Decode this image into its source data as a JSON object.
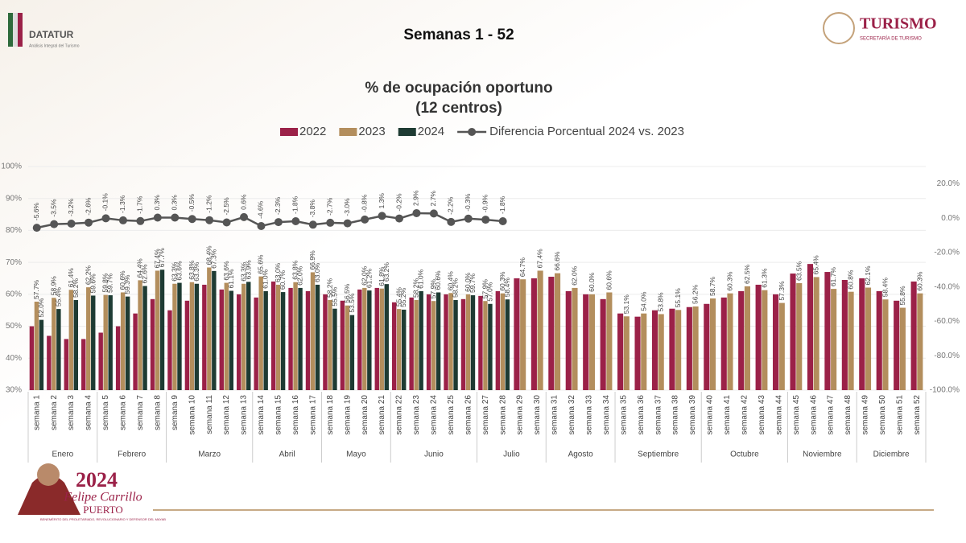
{
  "header": {
    "logo": "DATATUR",
    "logo_subtitle": "Análisis Integral del Turismo",
    "page_title": "Semanas 1 - 52",
    "ministry": "TURISMO",
    "ministry_subtitle": "SECRETARÍA DE TURISMO"
  },
  "footer": {
    "year": "2024",
    "name": "Felipe Carrillo",
    "surname": "PUERTO",
    "motto": "BENEMÉRITO DEL PROLETARIADO, REVOLUCIONARIO Y DEFENSOR DEL MAYAB"
  },
  "chart_data": {
    "type": "bar",
    "title": "% de ocupación oportuno",
    "subtitle": "(12 centros)",
    "categories": [
      "semana 1",
      "semana 2",
      "semana 3",
      "semana 4",
      "semana 5",
      "semana 6",
      "semana 7",
      "semana 8",
      "semana 9",
      "semana 10",
      "semana 11",
      "semana 12",
      "semana 13",
      "semana 14",
      "semana 15",
      "semana 16",
      "semana 17",
      "semana 18",
      "semana 19",
      "semana 20",
      "semana 21",
      "semana 22",
      "semana 23",
      "semana 24",
      "semana 25",
      "semana 26",
      "semana 27",
      "semana 28",
      "semana 29",
      "semana 30",
      "semana 31",
      "semana 32",
      "semana 33",
      "semana 34",
      "semana 35",
      "semana 36",
      "semana 37",
      "semana 38",
      "semana 39",
      "semana 40",
      "semana 41",
      "semana 42",
      "semana 43",
      "semana 44",
      "semana 45",
      "semana 46",
      "semana 47",
      "semana 48",
      "semana 49",
      "semana 50",
      "semana 51",
      "semana 52"
    ],
    "groups": [
      {
        "label": "Enero",
        "span": 4
      },
      {
        "label": "Febrero",
        "span": 4
      },
      {
        "label": "Marzo",
        "span": 5
      },
      {
        "label": "Abril",
        "span": 4
      },
      {
        "label": "Mayo",
        "span": 4
      },
      {
        "label": "Junio",
        "span": 5
      },
      {
        "label": "Julio",
        "span": 4
      },
      {
        "label": "Agosto",
        "span": 4
      },
      {
        "label": "Septiembre",
        "span": 5
      },
      {
        "label": "Octubre",
        "span": 5
      },
      {
        "label": "Noviembre",
        "span": 4
      },
      {
        "label": "Diciembre",
        "span": 4
      }
    ],
    "series": [
      {
        "name": "2022",
        "color": "#9b2148",
        "values": [
          50,
          47,
          46,
          46,
          48,
          50,
          54,
          58.5,
          55,
          58,
          63,
          61.5,
          60,
          59,
          64,
          62,
          61,
          60,
          58,
          61.5,
          62,
          57.5,
          59,
          60,
          60,
          58.5,
          59.5,
          61,
          65,
          65,
          65.5,
          61,
          60,
          58.5,
          54,
          53,
          55,
          55.5,
          56,
          57,
          59,
          61,
          63,
          60,
          66.5,
          69.5,
          67,
          64.5,
          65,
          61,
          58,
          64
        ]
      },
      {
        "name": "2023",
        "color": "#b38e5d",
        "values": [
          57.7,
          58.9,
          61.4,
          62.2,
          59.8,
          60.6,
          64.4,
          67.4,
          63.3,
          63.8,
          68.4,
          63.6,
          63.3,
          65.6,
          63.0,
          63.8,
          66.9,
          58.2,
          56.5,
          62.0,
          61.8,
          55.4,
          58.2,
          57.9,
          60.4,
          60.0,
          57.9,
          60.3,
          64.7,
          67.4,
          66.6,
          62.0,
          60.0,
          60.6,
          53.1,
          54.0,
          53.8,
          55.1,
          56.2,
          58.7,
          60.3,
          62.5,
          61.3,
          57.3,
          63.5,
          65.4,
          61.7,
          60.8,
          62.1,
          58.4,
          55.8,
          60.3
        ],
        "value_labels": [
          "57.7%",
          "58.9%",
          "61.4%",
          "62.2%",
          "59.8%",
          "60.6%",
          "64.4%",
          "67.4%",
          "63.3%",
          "63.8%",
          "68.4%",
          "63.6%",
          "63.3%",
          "65.6%",
          "63.0%",
          "63.8%",
          "66.9%",
          "58.2%",
          "56.5%",
          "62.0%",
          "61.8%",
          "55.4%",
          "58.2%",
          "57.9%",
          "60.4%",
          "60.0%",
          "57.9%",
          "60.3%",
          "64.7%",
          "67.4%",
          "66.6%",
          "62.0%",
          "60.0%",
          "60.6%",
          "53.1%",
          "54.0%",
          "53.8%",
          "55.1%",
          "56.2%",
          "58.7%",
          "60.3%",
          "62.5%",
          "61.3%",
          "57.3%",
          "63.5%",
          "65.4%",
          "61.7%",
          "60.8%",
          "62.1%",
          "58.4%",
          "55.8%",
          "60.3%"
        ]
      },
      {
        "name": "2024",
        "color": "#1e3b33",
        "values": [
          52.0,
          55.4,
          58.2,
          59.6,
          59.7,
          59.3,
          62.6,
          67.7,
          63.6,
          63.3,
          67.3,
          61.1,
          63.9,
          61.0,
          60.7,
          62.0,
          63.0,
          55.5,
          53.5,
          61.2,
          63.2,
          55.2,
          61.0,
          60.6,
          58.2,
          59.7,
          57.0,
          58.4,
          null,
          null,
          null,
          null,
          null,
          null,
          null,
          null,
          null,
          null,
          null,
          null,
          null,
          null,
          null,
          null,
          null,
          null,
          null,
          null,
          null,
          null,
          null,
          null
        ],
        "value_labels": [
          "52.0%",
          "55.4%",
          "58.2%",
          "59.6%",
          "59.7%",
          "59.3%",
          "62.6%",
          "67.7%",
          "63.6%",
          "63.3%",
          "67.3%",
          "61.1%",
          "63.9%",
          "61.0%",
          "60.7%",
          "62.0%",
          "63.0%",
          "55.5%",
          "53.5%",
          "61.2%",
          "63.2%",
          "55.2%",
          "61.0%",
          "60.6%",
          "58.2%",
          "59.7%",
          "57.0%",
          "58.4%",
          null,
          null,
          null,
          null,
          null,
          null,
          null,
          null,
          null,
          null,
          null,
          null,
          null,
          null,
          null,
          null,
          null,
          null,
          null,
          null,
          null,
          null,
          null,
          null
        ]
      },
      {
        "name": "Diferencia Porcentual 2024 vs. 2023",
        "type": "line",
        "axis": "y2",
        "color": "#555555",
        "values": [
          -5.6,
          -3.5,
          -3.2,
          -2.6,
          -0.1,
          -1.3,
          -1.7,
          0.3,
          0.3,
          -0.5,
          -1.2,
          -2.5,
          0.6,
          -4.6,
          -2.3,
          -1.8,
          -3.8,
          -2.7,
          -3.0,
          -0.8,
          1.3,
          -0.2,
          2.9,
          2.7,
          -2.2,
          -0.3,
          -0.9,
          -1.8,
          null,
          null,
          null,
          null,
          null,
          null,
          null,
          null,
          null,
          null,
          null,
          null,
          null,
          null,
          null,
          null,
          null,
          null,
          null,
          null,
          null,
          null,
          null,
          null
        ],
        "value_labels": [
          "-5.6%",
          "-3.5%",
          "-3.2%",
          "-2.6%",
          "-0.1%",
          "-1.3%",
          "-1.7%",
          "0.3%",
          "0.3%",
          "-0.5%",
          "-1.2%",
          "-2.5%",
          "0.6%",
          "-4.6%",
          "-2.3%",
          "-1.8%",
          "-3.8%",
          "-2.7%",
          "-3.0%",
          "-0.8%",
          "1.3%",
          "-0.2%",
          "2.9%",
          "2.7%",
          "-2.2%",
          "-0.3%",
          "-0.9%",
          "-1.8%",
          null,
          null,
          null,
          null,
          null,
          null,
          null,
          null,
          null,
          null,
          null,
          null,
          null,
          null,
          null,
          null,
          null,
          null,
          null,
          null,
          null,
          null,
          null,
          null
        ]
      }
    ],
    "ylim": [
      30,
      100
    ],
    "yticks": [
      {
        "value": 30,
        "label": "30%"
      },
      {
        "value": 40,
        "label": "40%"
      },
      {
        "value": 50,
        "label": "50%"
      },
      {
        "value": 60,
        "label": "60%"
      },
      {
        "value": 70,
        "label": "70%"
      },
      {
        "value": 80,
        "label": "80%"
      },
      {
        "value": 90,
        "label": "90%"
      },
      {
        "value": 100,
        "label": "100%"
      }
    ],
    "y2lim": [
      -100,
      30
    ],
    "y2ticks": [
      {
        "value": -100,
        "label": "-100.0%"
      },
      {
        "value": -80,
        "label": "-80.0%"
      },
      {
        "value": -60,
        "label": "-60.0%"
      },
      {
        "value": -40,
        "label": "-40.0%"
      },
      {
        "value": -20,
        "label": "-20.0%"
      },
      {
        "value": 0,
        "label": "0.0%"
      },
      {
        "value": 20,
        "label": "20.0%"
      }
    ],
    "grid": true
  }
}
